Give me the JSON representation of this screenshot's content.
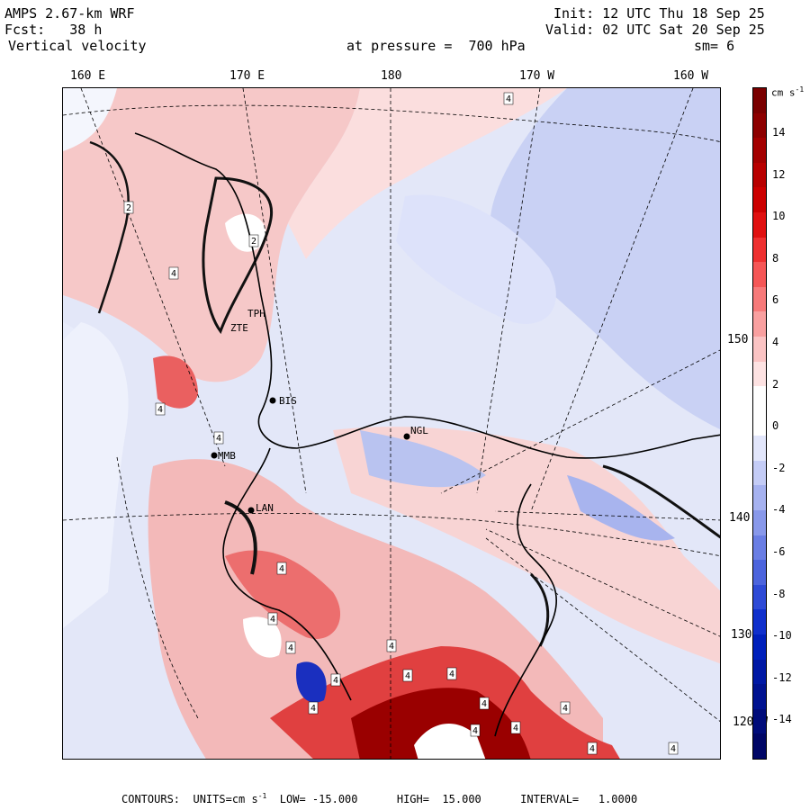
{
  "header": {
    "model": "AMPS 2.67-km WRF",
    "fcst": "Fcst:   38 h",
    "field": "Vertical velocity",
    "init": "Init: 12 UTC Thu 18 Sep 25",
    "valid": "Valid: 02 UTC Sat 20 Sep 25",
    "level": "at pressure =  700 hPa",
    "smoothing": "sm= 6"
  },
  "longitude_labels": [
    "160 E",
    "170 E",
    "180",
    "170 W",
    "160 W"
  ],
  "latitude_labels": [
    "150 W",
    "140 W",
    "130 W",
    "120 W"
  ],
  "station_labels": [
    "BIS",
    "NGL",
    "LAN",
    "TPH",
    "ZTE",
    "MMB"
  ],
  "contour_labels": [
    "4",
    "2",
    "4",
    "4",
    "2",
    "4",
    "4",
    "4",
    "4",
    "4",
    "4",
    "4",
    "4",
    "4",
    "4",
    "4",
    "4",
    "4",
    "4",
    "4"
  ],
  "colorbar": {
    "units_label": "cm s",
    "units_superscript": "-1",
    "ticks": [
      "14",
      "12",
      "10",
      "8",
      "6",
      "4",
      "2",
      "0",
      "-2",
      "-4",
      "-6",
      "-8",
      "-10",
      "-12",
      "-14"
    ],
    "colors": [
      "#7a0000",
      "#8d0000",
      "#a30000",
      "#b80000",
      "#cc0000",
      "#e01010",
      "#ee3030",
      "#f55656",
      "#f77a7a",
      "#f9a0a0",
      "#fbc4c4",
      "#fde2e2",
      "#ffffff",
      "#ffffff",
      "#e2e6fb",
      "#c4ccf6",
      "#a6b2f0",
      "#8898ea",
      "#6a7ee4",
      "#4c64dd",
      "#2e4ad6",
      "#1030cc",
      "#0020bb",
      "#0018a5",
      "#001290",
      "#000c7a",
      "#000666"
    ]
  },
  "footer": {
    "contours": "CONTOURS:  UNITS=cm s",
    "units_sup": "-1",
    "rest": "  LOW= -15.000      HIGH=  15.000      INTERVAL=   1.0000"
  }
}
